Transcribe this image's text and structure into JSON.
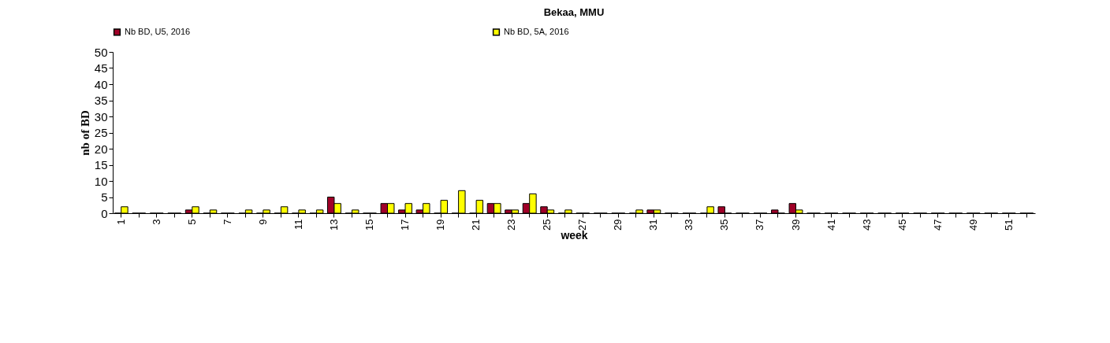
{
  "chart_data": {
    "type": "bar",
    "title": "Bekaa, MMU",
    "xlabel": "week",
    "ylabel": "nb of BD",
    "categories": [
      "1",
      null,
      "3",
      null,
      "5",
      null,
      "7",
      null,
      "9",
      null,
      "11",
      null,
      "13",
      null,
      "15",
      null,
      "17",
      null,
      "19",
      null,
      "21",
      null,
      "23",
      null,
      "25",
      null,
      "27",
      null,
      "29",
      null,
      "31",
      null,
      "33",
      null,
      "35",
      null,
      "37",
      null,
      "39",
      null,
      "41",
      null,
      "43",
      null,
      "45",
      null,
      "47",
      null,
      "49",
      null,
      "51",
      null
    ],
    "series": [
      {
        "name": "Nb BD, U5, 2016",
        "color": "#a00028",
        "values": [
          0,
          0,
          0,
          0,
          1,
          0,
          0,
          0,
          0,
          0,
          0,
          0,
          5,
          0,
          0,
          3,
          1,
          1,
          0,
          0,
          0,
          3,
          1,
          3,
          2,
          0,
          0,
          0,
          0,
          0,
          1,
          0,
          0,
          0,
          2,
          0,
          0,
          1,
          3,
          0,
          0,
          0,
          0,
          0,
          0,
          0,
          0,
          0,
          0,
          0,
          0,
          0
        ]
      },
      {
        "name": "Nb BD, 5A, 2016",
        "color": "#ffff00",
        "values": [
          2,
          0,
          0,
          0,
          2,
          1,
          0,
          1,
          1,
          2,
          1,
          1,
          3,
          1,
          0,
          3,
          3,
          3,
          4,
          7,
          4,
          3,
          1,
          6,
          1,
          1,
          0,
          0,
          0,
          1,
          1,
          0,
          0,
          2,
          0,
          0,
          0,
          0,
          1,
          0,
          0,
          0,
          0,
          0,
          0,
          0,
          0,
          0,
          0,
          0,
          0,
          0
        ]
      }
    ],
    "ylim": [
      0,
      50
    ],
    "yticks": [
      0,
      5,
      10,
      15,
      20,
      25,
      30,
      35,
      40,
      45,
      50
    ],
    "legend": "top"
  }
}
